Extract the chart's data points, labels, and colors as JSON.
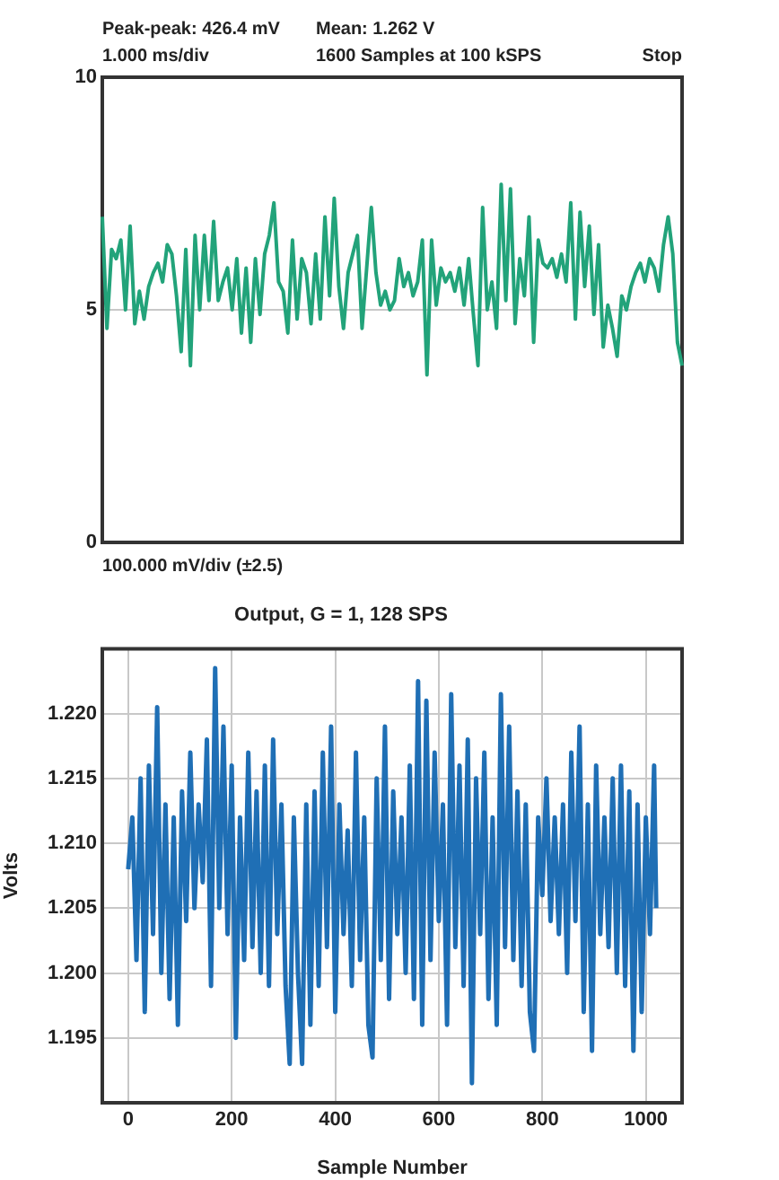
{
  "chart_data": [
    {
      "type": "line",
      "annotations": [
        "Peak-peak: 426.4 mV",
        "Mean: 1.262 V",
        "1.000 ms/div",
        "1600 Samples at 100 kSPS",
        "Stop",
        "100.000 mV/div (±2.5)"
      ],
      "categories": [
        null,
        null,
        null,
        null,
        null,
        null,
        null,
        null,
        null,
        null,
        null,
        null,
        null,
        null,
        null,
        null,
        null,
        null,
        null,
        null,
        null,
        null,
        null,
        null,
        null,
        null,
        null,
        null,
        null,
        null,
        null,
        null,
        null,
        null,
        null,
        null,
        null,
        null,
        null,
        null,
        null,
        null,
        null,
        null,
        null,
        null,
        null,
        null,
        null,
        null,
        null,
        null,
        null,
        null,
        null,
        null,
        null,
        null,
        null,
        null,
        null,
        null,
        null,
        null,
        null,
        null,
        null,
        null,
        null,
        null,
        null,
        null,
        null,
        null,
        null,
        null,
        null,
        null,
        null,
        null,
        null,
        null,
        null,
        null,
        null,
        null,
        null,
        null,
        null,
        null,
        null,
        null,
        null,
        null,
        null,
        null,
        null,
        null,
        null,
        null,
        null,
        null,
        null,
        null,
        null,
        null,
        null,
        null,
        null,
        null,
        null,
        null,
        null,
        null,
        null,
        null,
        null,
        null,
        null,
        null,
        null,
        null,
        null,
        null,
        null,
        null
      ],
      "series": [
        {
          "color": "#22a37a",
          "values": [
            7.0,
            4.6,
            6.3,
            6.1,
            6.5,
            5.0,
            6.8,
            4.7,
            5.4,
            4.8,
            5.5,
            5.8,
            6.0,
            5.6,
            6.4,
            6.2,
            5.3,
            4.1,
            6.3,
            3.8,
            6.6,
            5.0,
            6.6,
            5.2,
            6.9,
            5.2,
            5.6,
            5.9,
            5.0,
            6.1,
            4.5,
            5.9,
            4.3,
            6.1,
            4.9,
            6.2,
            6.6,
            7.3,
            5.6,
            5.4,
            4.5,
            6.5,
            4.8,
            6.1,
            5.8,
            4.7,
            6.2,
            4.8,
            7.0,
            5.3,
            7.4,
            5.5,
            4.6,
            5.8,
            6.2,
            6.6,
            4.6,
            5.9,
            7.2,
            5.8,
            5.1,
            5.4,
            5.0,
            5.2,
            6.1,
            5.5,
            5.8,
            5.3,
            5.6,
            6.5,
            3.6,
            6.5,
            5.1,
            5.9,
            5.6,
            5.8,
            5.4,
            5.9,
            5.1,
            6.1,
            4.9,
            3.8,
            7.2,
            5.0,
            5.6,
            4.6,
            7.7,
            5.2,
            7.6,
            4.7,
            6.1,
            5.3,
            7.0,
            4.3,
            6.5,
            6.0,
            5.9,
            6.1,
            5.7,
            6.2,
            5.6,
            7.3,
            4.8,
            7.1,
            5.5,
            6.8,
            4.9,
            6.4,
            4.2,
            5.1,
            4.6,
            4.0,
            5.3,
            5.0,
            5.5,
            5.8,
            6.0,
            5.6,
            6.1,
            5.9,
            5.4,
            6.4,
            7.0,
            6.2,
            4.3,
            3.8
          ]
        }
      ],
      "ylim": [
        0,
        10
      ],
      "yticks": [
        0,
        5,
        10
      ],
      "grid": "y",
      "tick_labels": "y"
    },
    {
      "type": "line",
      "title": "Output, G = 1, 128 SPS",
      "xlabel": "Sample Number",
      "ylabel": "Volts",
      "x": [
        0,
        8,
        16,
        24,
        32,
        40,
        48,
        56,
        64,
        72,
        80,
        88,
        96,
        104,
        112,
        120,
        128,
        136,
        144,
        152,
        160,
        168,
        176,
        184,
        192,
        200,
        208,
        216,
        224,
        232,
        240,
        248,
        256,
        264,
        272,
        280,
        288,
        296,
        304,
        312,
        320,
        328,
        336,
        344,
        352,
        360,
        368,
        376,
        384,
        392,
        400,
        408,
        416,
        424,
        432,
        440,
        448,
        456,
        464,
        472,
        480,
        488,
        496,
        504,
        512,
        520,
        528,
        536,
        544,
        552,
        560,
        568,
        576,
        584,
        592,
        600,
        608,
        616,
        624,
        632,
        640,
        648,
        656,
        664,
        672,
        680,
        688,
        696,
        704,
        712,
        720,
        728,
        736,
        744,
        752,
        760,
        768,
        776,
        784,
        792,
        800,
        808,
        816,
        824,
        832,
        840,
        848,
        856,
        864,
        872,
        880,
        888,
        896,
        904,
        912,
        920,
        928,
        936,
        944,
        952,
        960,
        968,
        976,
        984,
        992,
        1000,
        1008,
        1016,
        1020
      ],
      "series": [
        {
          "color": "#1f6fb5",
          "values": [
            1.208,
            1.212,
            1.201,
            1.215,
            1.197,
            1.216,
            1.203,
            1.2205,
            1.2,
            1.213,
            1.198,
            1.212,
            1.196,
            1.214,
            1.204,
            1.217,
            1.205,
            1.213,
            1.207,
            1.218,
            1.199,
            1.2235,
            1.205,
            1.219,
            1.203,
            1.216,
            1.195,
            1.212,
            1.201,
            1.217,
            1.202,
            1.214,
            1.2,
            1.216,
            1.199,
            1.218,
            1.203,
            1.213,
            1.199,
            1.193,
            1.212,
            1.2,
            1.193,
            1.213,
            1.196,
            1.214,
            1.199,
            1.217,
            1.202,
            1.219,
            1.197,
            1.213,
            1.203,
            1.211,
            1.199,
            1.217,
            1.201,
            1.212,
            1.196,
            1.1935,
            1.215,
            1.201,
            1.219,
            1.198,
            1.214,
            1.203,
            1.212,
            1.2,
            1.216,
            1.198,
            1.2225,
            1.196,
            1.221,
            1.201,
            1.217,
            1.204,
            1.213,
            1.196,
            1.2215,
            1.202,
            1.216,
            1.199,
            1.218,
            1.1915,
            1.215,
            1.203,
            1.217,
            1.198,
            1.212,
            1.196,
            1.2215,
            1.202,
            1.219,
            1.201,
            1.214,
            1.199,
            1.213,
            1.197,
            1.194,
            1.212,
            1.206,
            1.215,
            1.204,
            1.212,
            1.203,
            1.213,
            1.2,
            1.217,
            1.204,
            1.219,
            1.197,
            1.213,
            1.194,
            1.216,
            1.203,
            1.212,
            1.202,
            1.215,
            1.2,
            1.216,
            1.199,
            1.214,
            1.194,
            1.213,
            1.197,
            1.212,
            1.203,
            1.216,
            1.205
          ]
        }
      ],
      "xlim": [
        -50,
        1070
      ],
      "xticks": [
        0,
        200,
        400,
        600,
        800,
        1000
      ],
      "ylim": [
        1.19,
        1.225
      ],
      "yticks": [
        1.195,
        {
          "value": 1.2,
          "label": "1.200"
        },
        1.205,
        {
          "value": 1.21,
          "label": "1.210"
        },
        1.215,
        {
          "value": 1.22,
          "label": "1.220"
        }
      ],
      "grid": true
    }
  ]
}
